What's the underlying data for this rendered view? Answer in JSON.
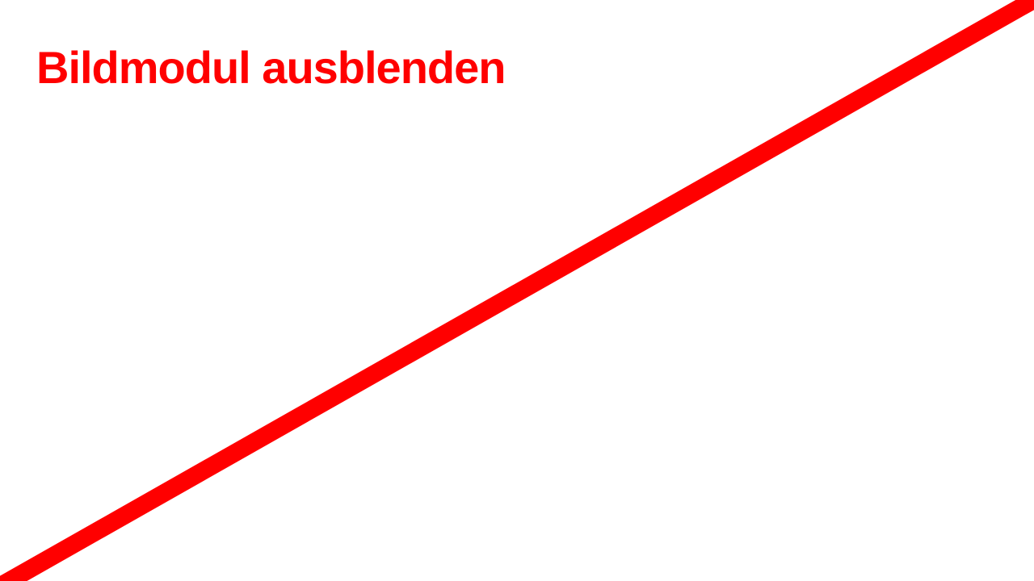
{
  "placeholder": {
    "label": "Bildmodul ausblenden"
  },
  "colors": {
    "accent": "#ff0000",
    "background": "#ffffff"
  }
}
